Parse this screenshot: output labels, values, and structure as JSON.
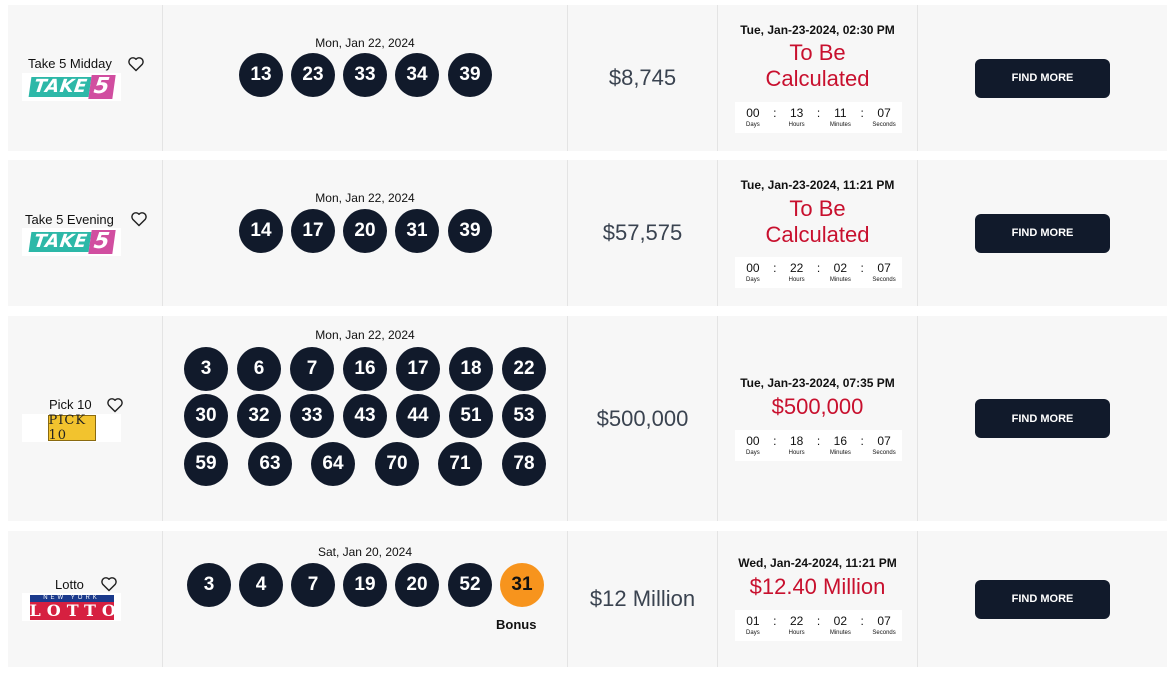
{
  "rows": [
    {
      "game": "Take 5 Midday",
      "logo": {
        "type": "take5",
        "part1": "TAKE",
        "part2": "5"
      },
      "draw_date": "Mon, Jan 22, 2024",
      "balls": [
        "13",
        "23",
        "33",
        "34",
        "39"
      ],
      "bonus": null,
      "jackpot": "$8,745",
      "next_draw": "Tue, Jan-23-2024, 02:30 PM",
      "next_amount_lines": [
        "To Be",
        "Calculated"
      ],
      "countdown": {
        "days": "00",
        "hours": "13",
        "minutes": "11",
        "seconds": "07"
      },
      "button": "FIND MORE"
    },
    {
      "game": "Take 5 Evening",
      "logo": {
        "type": "take5",
        "part1": "TAKE",
        "part2": "5"
      },
      "draw_date": "Mon, Jan 22, 2024",
      "balls": [
        "14",
        "17",
        "20",
        "31",
        "39"
      ],
      "bonus": null,
      "jackpot": "$57,575",
      "next_draw": "Tue, Jan-23-2024, 11:21 PM",
      "next_amount_lines": [
        "To Be",
        "Calculated"
      ],
      "countdown": {
        "days": "00",
        "hours": "22",
        "minutes": "02",
        "seconds": "07"
      },
      "button": "FIND MORE"
    },
    {
      "game": "Pick 10",
      "logo": {
        "type": "pick10",
        "text": "PICK 10"
      },
      "draw_date": "Mon, Jan 22, 2024",
      "balls": [
        "3",
        "6",
        "7",
        "16",
        "17",
        "18",
        "22",
        "30",
        "32",
        "33",
        "43",
        "44",
        "51",
        "53",
        "59",
        "63",
        "64",
        "70",
        "71",
        "78"
      ],
      "bonus": null,
      "jackpot": "$500,000",
      "next_draw": "Tue, Jan-23-2024, 07:35 PM",
      "next_amount_lines": [
        "$500,000"
      ],
      "countdown": {
        "days": "00",
        "hours": "18",
        "minutes": "16",
        "seconds": "07"
      },
      "button": "FIND MORE"
    },
    {
      "game": "Lotto",
      "logo": {
        "type": "lotto",
        "top": "NEW YORK",
        "text": "LOTTO"
      },
      "draw_date": "Sat, Jan 20, 2024",
      "balls": [
        "3",
        "4",
        "7",
        "19",
        "20",
        "52"
      ],
      "bonus": {
        "value": "31",
        "label": "Bonus"
      },
      "jackpot": "$12 Million",
      "next_draw": "Wed, Jan-24-2024, 11:21 PM",
      "next_amount_lines": [
        "$12.40 Million"
      ],
      "countdown": {
        "days": "01",
        "hours": "22",
        "minutes": "02",
        "seconds": "07"
      },
      "button": "FIND MORE"
    }
  ],
  "countdown_labels": {
    "days": "Days",
    "hours": "Hours",
    "minutes": "Minutes",
    "seconds": "Seconds"
  },
  "colors": {
    "ball": "#111a2b",
    "bonus_ball": "#f7941d",
    "next_amount": "#c8102e",
    "button": "#111a2b"
  }
}
